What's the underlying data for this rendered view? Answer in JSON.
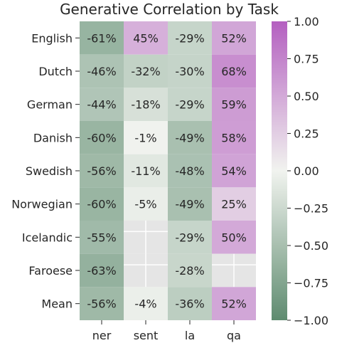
{
  "chart_data": {
    "type": "heatmap",
    "title": "Generative Correlation by Task",
    "xlabel": "",
    "ylabel": "",
    "rows": [
      "English",
      "Dutch",
      "German",
      "Danish",
      "Swedish",
      "Norwegian",
      "Icelandic",
      "Faroese",
      "Mean"
    ],
    "columns": [
      "ner",
      "sent",
      "la",
      "qa"
    ],
    "values": [
      [
        -0.61,
        0.45,
        -0.29,
        0.52
      ],
      [
        -0.46,
        -0.32,
        -0.3,
        0.68
      ],
      [
        -0.44,
        -0.18,
        -0.29,
        0.59
      ],
      [
        -0.6,
        -0.01,
        -0.49,
        0.58
      ],
      [
        -0.56,
        -0.11,
        -0.48,
        0.54
      ],
      [
        -0.6,
        -0.05,
        -0.49,
        0.25
      ],
      [
        -0.55,
        null,
        -0.29,
        0.5
      ],
      [
        -0.63,
        null,
        -0.28,
        null
      ],
      [
        -0.56,
        -0.04,
        -0.36,
        0.52
      ]
    ],
    "cell_labels": [
      [
        "-61%",
        "45%",
        "-29%",
        "52%"
      ],
      [
        "-46%",
        "-32%",
        "-30%",
        "68%"
      ],
      [
        "-44%",
        "-18%",
        "-29%",
        "59%"
      ],
      [
        "-60%",
        "-1%",
        "-49%",
        "58%"
      ],
      [
        "-56%",
        "-11%",
        "-48%",
        "54%"
      ],
      [
        "-60%",
        "-5%",
        "-49%",
        "25%"
      ],
      [
        "-55%",
        "",
        "-29%",
        "50%"
      ],
      [
        "-63%",
        "",
        "-28%",
        ""
      ],
      [
        "-56%",
        "-4%",
        "-36%",
        "52%"
      ]
    ],
    "colorbar": {
      "range": [
        -1.0,
        1.0
      ],
      "ticks": [
        "1.00",
        "0.75",
        "0.50",
        "0.25",
        "0.00",
        "−0.25",
        "−0.50",
        "−0.75",
        "−1.00"
      ],
      "colors": {
        "low": "#5e8b6f",
        "mid": "#f1f3ef",
        "high": "#b45fc0",
        "missing": "#e5e5e5"
      }
    },
    "grid": false
  }
}
